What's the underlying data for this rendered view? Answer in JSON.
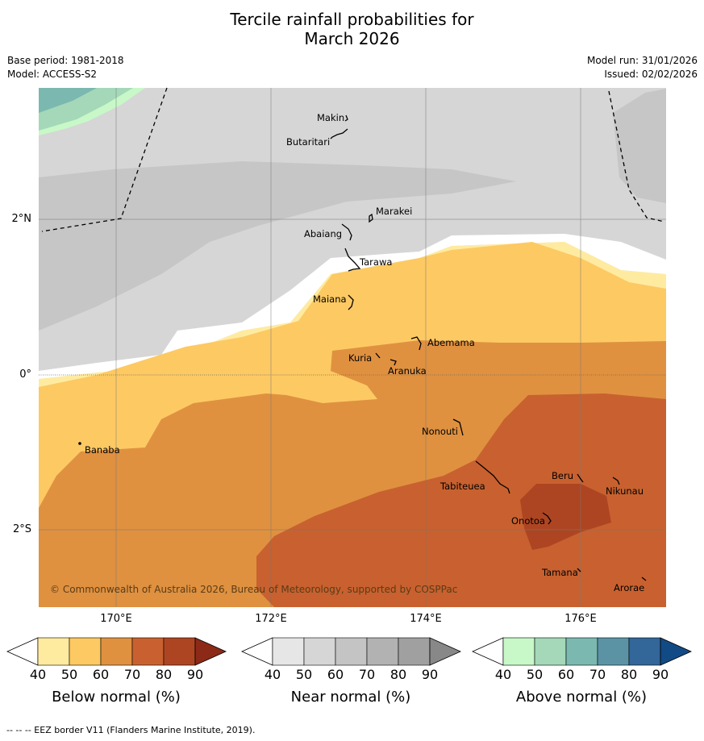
{
  "title": {
    "line1": "Tercile rainfall probabilities for",
    "line2": "March 2026"
  },
  "meta": {
    "base_period": "Base period: 1981-2018",
    "model": "Model: ACCESS-S2",
    "model_run": "Model run: 31/01/2026",
    "issued": "Issued: 02/02/2026"
  },
  "axes": {
    "lat_labels": [
      "2°N",
      "0°",
      "2°S"
    ],
    "lon_labels": [
      "170°E",
      "172°E",
      "174°E",
      "176°E"
    ]
  },
  "places": {
    "makin": "Makin",
    "butaritari": "Butaritari",
    "marakei": "Marakei",
    "abaiang": "Abaiang",
    "tarawa": "Tarawa",
    "maiana": "Maiana",
    "abemama": "Abemama",
    "kuria": "Kuria",
    "aranuka": "Aranuka",
    "banaba": "Banaba",
    "nonouti": "Nonouti",
    "beru": "Beru",
    "tabiteuea": "Tabiteuea",
    "nikunau": "Nikunau",
    "onotoa": "Onotoa",
    "tamana": "Tamana",
    "arorae": "Arorae"
  },
  "copyright": "© Commonwealth of Australia 2026, Bureau of Meteorology, supported by COSPPac",
  "colorbars": {
    "below": {
      "label": "Below normal (%)",
      "ticks": [
        "40",
        "50",
        "60",
        "70",
        "80",
        "90"
      ],
      "colors": [
        "#ffffff",
        "#feeba0",
        "#fdc963",
        "#df9140",
        "#c8612f",
        "#ae4522",
        "#8c2a17"
      ]
    },
    "near": {
      "label": "Near normal (%)",
      "ticks": [
        "40",
        "50",
        "60",
        "70",
        "80",
        "90"
      ],
      "colors": [
        "#ffffff",
        "#e6e6e6",
        "#d6d6d6",
        "#c4c4c4",
        "#b2b2b2",
        "#a0a0a0",
        "#888888"
      ]
    },
    "above": {
      "label": "Above normal (%)",
      "ticks": [
        "40",
        "50",
        "60",
        "70",
        "80",
        "90"
      ],
      "colors": [
        "#ffffff",
        "#c8f8c8",
        "#a4d8b8",
        "#7bb8b0",
        "#5b93a4",
        "#336699",
        "#124a85"
      ]
    }
  },
  "footer": "--  --  -- EEZ border V11 (Flanders Marine Institute, 2019)."
}
